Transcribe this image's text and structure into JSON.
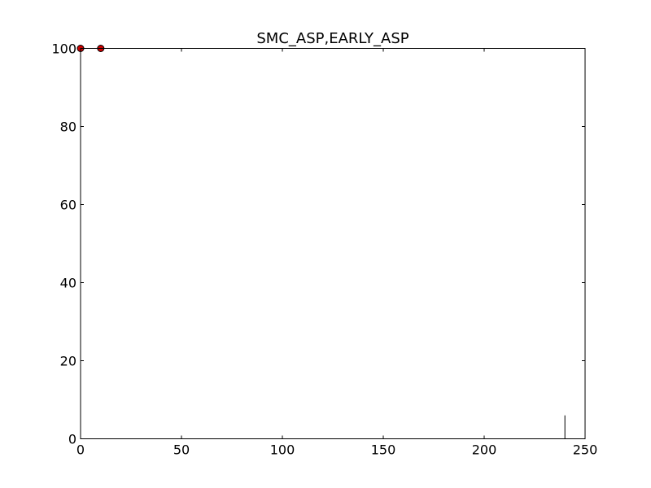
{
  "chart_data": {
    "type": "scatter",
    "title": "SMC_ASP,EARLY_ASP",
    "xlabel": "",
    "ylabel": "",
    "xlim": [
      0,
      250
    ],
    "ylim": [
      0,
      100
    ],
    "xticks": [
      0,
      50,
      100,
      150,
      200,
      250
    ],
    "yticks": [
      0,
      20,
      40,
      60,
      80,
      100
    ],
    "xtick_labels": [
      "0",
      "50",
      "100",
      "150",
      "200",
      "250"
    ],
    "ytick_labels": [
      "0",
      "20",
      "40",
      "60",
      "80",
      "100"
    ],
    "grid": false,
    "points": [
      {
        "x": 0,
        "y": 100
      },
      {
        "x": 10,
        "y": 100
      }
    ],
    "vlines": [
      {
        "x": 240,
        "y0": 0,
        "y1": 6
      }
    ],
    "colors": {
      "marker_fill": "#cc0000",
      "marker_edge": "#000000",
      "axes": "#000000",
      "vline": "#000000"
    }
  }
}
